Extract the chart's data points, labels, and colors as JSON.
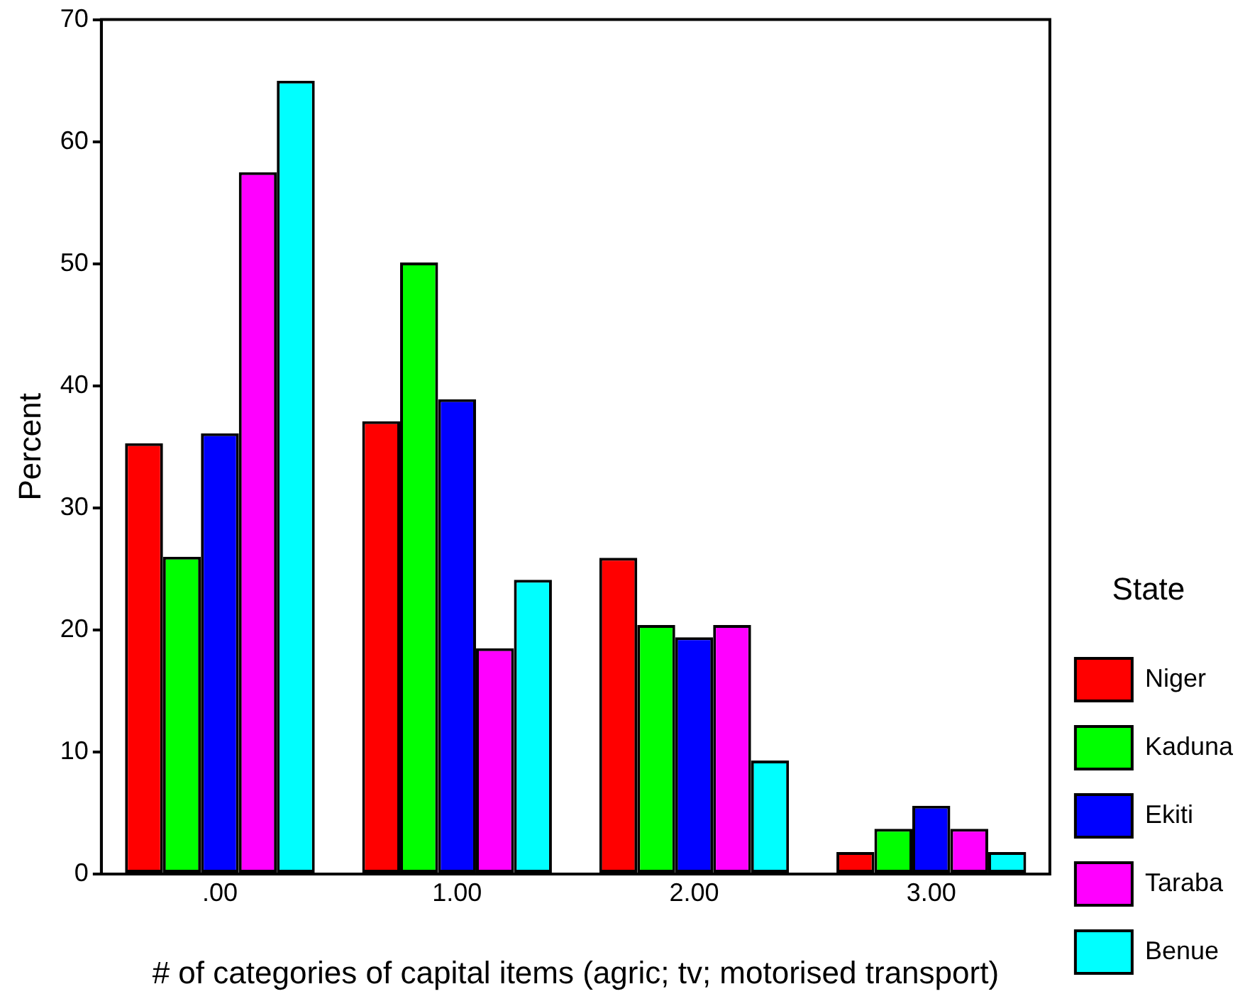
{
  "chart_data": {
    "type": "bar",
    "xlabel": "# of categories of capital items (agric; tv; motorised transport)",
    "ylabel": "Percent",
    "legend_title": "State",
    "categories": [
      ".00",
      "1.00",
      "2.00",
      "3.00"
    ],
    "series": [
      {
        "name": "Niger",
        "color": "#ff0000",
        "values": [
          35.3,
          37.1,
          25.9,
          1.8
        ]
      },
      {
        "name": "Kaduna",
        "color": "#00ff00",
        "values": [
          26.0,
          50.1,
          20.4,
          3.7
        ]
      },
      {
        "name": "Ekiti",
        "color": "#0000ff",
        "values": [
          36.1,
          38.9,
          19.4,
          5.6
        ]
      },
      {
        "name": "Taraba",
        "color": "#ff00ff",
        "values": [
          57.5,
          18.5,
          20.4,
          3.7
        ]
      },
      {
        "name": "Benue",
        "color": "#00ffff",
        "values": [
          65.0,
          24.1,
          9.3,
          1.8
        ]
      }
    ],
    "ylim": [
      0,
      70
    ],
    "yticks": [
      0,
      10,
      20,
      30,
      40,
      50,
      60,
      70
    ],
    "grid": false,
    "legend": "right"
  }
}
